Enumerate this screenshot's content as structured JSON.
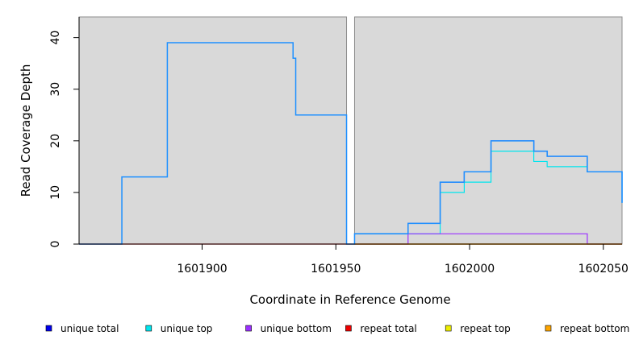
{
  "chart_data": {
    "type": "line",
    "title": "",
    "xlabel": "Coordinate in Reference Genome",
    "ylabel": "Read Coverage Depth",
    "xlim": [
      1601854,
      1602057
    ],
    "ylim": [
      0,
      44
    ],
    "x_ticks": [
      {
        "value": 1601900,
        "label": "1601900"
      },
      {
        "value": 1601950,
        "label": "1601950"
      },
      {
        "value": 1602000,
        "label": "1602000"
      },
      {
        "value": 1602050,
        "label": "1602050"
      }
    ],
    "y_ticks": [
      {
        "value": 0,
        "label": "0"
      },
      {
        "value": 10,
        "label": "10"
      },
      {
        "value": 20,
        "label": "20"
      },
      {
        "value": 30,
        "label": "30"
      },
      {
        "value": 40,
        "label": "40"
      }
    ],
    "grid": false,
    "legend_position": "bottom",
    "panels": [
      {
        "x_start": 1601854,
        "x_end": 1601954
      },
      {
        "x_start": 1601957,
        "x_end": 1602057
      }
    ],
    "series": [
      {
        "name": "unique total",
        "color": "#0000ee",
        "steps": [
          [
            1601957,
            2
          ],
          [
            1601977,
            4
          ],
          [
            1601989,
            12
          ],
          [
            1601998,
            14
          ],
          [
            1602008,
            20
          ],
          [
            1602024,
            18
          ],
          [
            1602029,
            17
          ],
          [
            1602044,
            14
          ],
          [
            1602057,
            8
          ]
        ]
      },
      {
        "name": "unique top",
        "color": "#00e5ee",
        "steps": [
          [
            1601957,
            2
          ],
          [
            1601989,
            10
          ],
          [
            1601998,
            12
          ],
          [
            1602008,
            18
          ],
          [
            1602024,
            16
          ],
          [
            1602029,
            15
          ],
          [
            1602044,
            14
          ],
          [
            1602057,
            8
          ]
        ]
      },
      {
        "name": "unique bottom",
        "color": "#9b30ff",
        "steps": [
          [
            1601957,
            0
          ],
          [
            1601977,
            2
          ],
          [
            1602044,
            0
          ],
          [
            1602057,
            0
          ]
        ]
      },
      {
        "name": "repeat total",
        "color": "#ee0000",
        "steps": [
          [
            1601854,
            0
          ],
          [
            1601954,
            0
          ],
          [
            1601957,
            0
          ],
          [
            1602057,
            0
          ]
        ]
      },
      {
        "name": "repeat top",
        "color": "#eeee00",
        "steps": [
          [
            1601957,
            0
          ],
          [
            1602057,
            0
          ]
        ]
      },
      {
        "name": "repeat bottom",
        "color": "#ffa500",
        "steps": [
          [
            1601957,
            0
          ],
          [
            1602057,
            0
          ]
        ]
      },
      {
        "name": "",
        "color": "#1e90ff",
        "in_legend": false,
        "steps": [
          [
            1601854,
            0
          ],
          [
            1601870,
            13
          ],
          [
            1601887,
            39
          ],
          [
            1601934,
            36
          ],
          [
            1601935,
            25
          ],
          [
            1601954,
            0
          ],
          [
            1601957,
            2
          ],
          [
            1601977,
            4
          ],
          [
            1601989,
            12
          ],
          [
            1601998,
            14
          ],
          [
            1602008,
            20
          ],
          [
            1602024,
            18
          ],
          [
            1602029,
            17
          ],
          [
            1602044,
            14
          ],
          [
            1602057,
            8
          ]
        ]
      }
    ]
  }
}
